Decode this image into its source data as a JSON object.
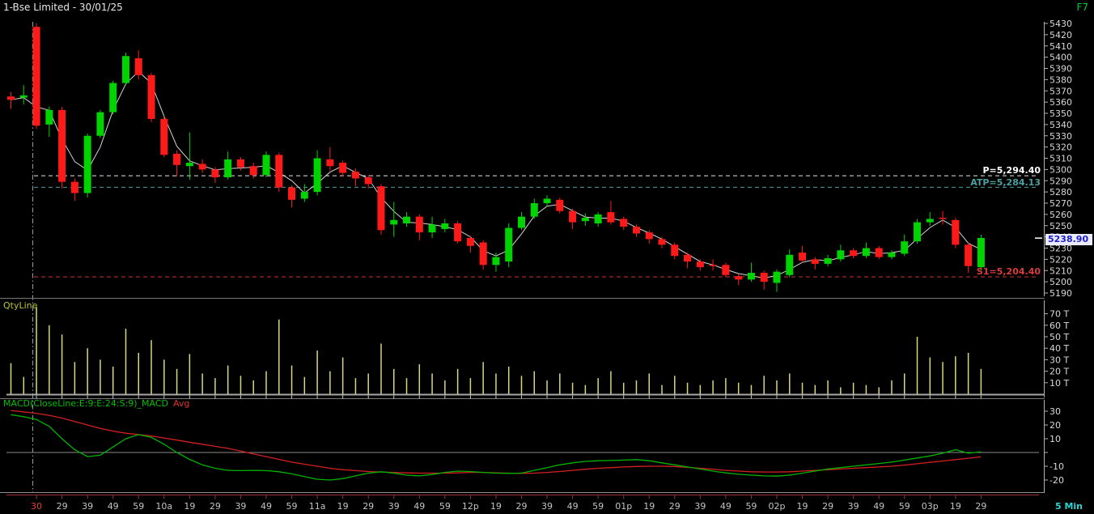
{
  "header": {
    "title": "1-Bse Limited - 30/01/25",
    "function_key": "F7"
  },
  "price_panel": {
    "y_axis_labels": [
      5430,
      5420,
      5410,
      5400,
      5390,
      5380,
      5370,
      5360,
      5350,
      5340,
      5330,
      5320,
      5310,
      5300,
      5290,
      5280,
      5270,
      5260,
      5250,
      5240,
      5230,
      5220,
      5210,
      5200,
      5190
    ],
    "levels": {
      "pivot": {
        "label": "P=5,294.40",
        "value": 5294.4,
        "color": "#ffffff"
      },
      "atp": {
        "label": "ATP=5,284.13",
        "value": 5284.13,
        "color": "#4da0a0"
      },
      "s1": {
        "label": "S1=5,204.40",
        "value": 5204.4,
        "color": "#d83c3c"
      }
    },
    "last_price": {
      "label": "5238.90",
      "value": 5238.9
    }
  },
  "volume_panel": {
    "title": "QtyLine",
    "y_axis": [
      {
        "v": 70,
        "t": "70 T"
      },
      {
        "v": 60,
        "t": "60 T"
      },
      {
        "v": 50,
        "t": "50 T"
      },
      {
        "v": 40,
        "t": "40 T"
      },
      {
        "v": 30,
        "t": "30 T"
      },
      {
        "v": 20,
        "t": "20 T"
      },
      {
        "v": 10,
        "t": "10 T"
      }
    ]
  },
  "macd_panel": {
    "title_main": "MACD(CloseLine:E:9:E:24:S:9)_MACD",
    "title_avg": "Avg",
    "y_axis": [
      {
        "v": 30,
        "t": "30"
      },
      {
        "v": 20,
        "t": "20"
      },
      {
        "v": 10,
        "t": "10"
      },
      {
        "v": 0,
        "t": ""
      },
      {
        "v": -10,
        "t": "-10"
      },
      {
        "v": -20,
        "t": "-20"
      }
    ]
  },
  "x_axis": {
    "labels": [
      "30",
      "29",
      "39",
      "49",
      "59",
      "10a",
      "19",
      "29",
      "39",
      "49",
      "59",
      "11a",
      "19",
      "29",
      "39",
      "49",
      "59",
      "12p",
      "19",
      "29",
      "39",
      "49",
      "59",
      "01p",
      "19",
      "29",
      "39",
      "49",
      "59",
      "02p",
      "19",
      "29",
      "39",
      "49",
      "59",
      "03p",
      "19",
      "29"
    ],
    "interval_label": "5 Min"
  },
  "chart_data": {
    "type": "candlestick+volume+macd",
    "title": "1-Bse Limited - 30/01/25",
    "interval": "5 Min",
    "price_axis_range": [
      5190,
      5430
    ],
    "volume_axis_range_T": [
      0,
      78
    ],
    "macd_axis_range": [
      -25,
      33
    ],
    "levels": {
      "pivot": 5294.4,
      "atp": 5284.13,
      "s1": 5204.4,
      "last": 5238.9
    },
    "colors": {
      "up": "#00d400",
      "down": "#ff1a1a",
      "close_line": "#e0e0e0",
      "volume": "#d6d97e",
      "macd": "#00b400",
      "macd_avg": "#d42020",
      "pivot": "#e8e8e8",
      "atp": "#4da0a0",
      "s1": "#cc3434",
      "axis": "#b0b0b0",
      "axis_text": "#d8d8d8",
      "time_text": "#c4c4c4",
      "first_time_label": "#e04028",
      "time_axis": "#a03030"
    },
    "candles_ohlc": [
      [
        5365,
        5369,
        5354,
        5362
      ],
      [
        5364,
        5375,
        5358,
        5366
      ],
      [
        5427,
        5430,
        5336,
        5339
      ],
      [
        5340,
        5356,
        5329,
        5353
      ],
      [
        5353,
        5356,
        5283,
        5289
      ],
      [
        5289,
        5292,
        5272,
        5279
      ],
      [
        5279,
        5332,
        5275,
        5330
      ],
      [
        5330,
        5353,
        5328,
        5351
      ],
      [
        5351,
        5379,
        5349,
        5377
      ],
      [
        5377,
        5404,
        5375,
        5401
      ],
      [
        5399,
        5406,
        5380,
        5384
      ],
      [
        5384,
        5386,
        5342,
        5345
      ],
      [
        5345,
        5347,
        5311,
        5313
      ],
      [
        5314,
        5317,
        5294,
        5304
      ],
      [
        5303,
        5333,
        5291,
        5306
      ],
      [
        5305,
        5309,
        5297,
        5300
      ],
      [
        5300,
        5302,
        5288,
        5293
      ],
      [
        5293,
        5316,
        5291,
        5309
      ],
      [
        5309,
        5311,
        5299,
        5302
      ],
      [
        5303,
        5306,
        5292,
        5295
      ],
      [
        5295,
        5316,
        5293,
        5313
      ],
      [
        5313,
        5315,
        5280,
        5284
      ],
      [
        5284,
        5286,
        5266,
        5273
      ],
      [
        5274,
        5287,
        5271,
        5280
      ],
      [
        5280,
        5317,
        5277,
        5310
      ],
      [
        5309,
        5320,
        5299,
        5303
      ],
      [
        5306,
        5308,
        5294,
        5297
      ],
      [
        5298,
        5301,
        5285,
        5292
      ],
      [
        5293,
        5295,
        5283,
        5287
      ],
      [
        5285,
        5287,
        5242,
        5246
      ],
      [
        5251,
        5271,
        5240,
        5255
      ],
      [
        5252,
        5262,
        5249,
        5258
      ],
      [
        5258,
        5260,
        5237,
        5244
      ],
      [
        5244,
        5258,
        5239,
        5251
      ],
      [
        5247,
        5256,
        5244,
        5252
      ],
      [
        5252,
        5254,
        5234,
        5236
      ],
      [
        5239,
        5241,
        5226,
        5232
      ],
      [
        5235,
        5237,
        5211,
        5215
      ],
      [
        5215,
        5226,
        5209,
        5222
      ],
      [
        5218,
        5252,
        5213,
        5248
      ],
      [
        5248,
        5262,
        5246,
        5258
      ],
      [
        5258,
        5274,
        5256,
        5270
      ],
      [
        5270,
        5277,
        5267,
        5274
      ],
      [
        5273,
        5275,
        5261,
        5263
      ],
      [
        5263,
        5265,
        5247,
        5253
      ],
      [
        5254,
        5261,
        5250,
        5257
      ],
      [
        5252,
        5262,
        5249,
        5260
      ],
      [
        5262,
        5272,
        5251,
        5253
      ],
      [
        5256,
        5258,
        5246,
        5249
      ],
      [
        5249,
        5251,
        5240,
        5243
      ],
      [
        5244,
        5246,
        5234,
        5238
      ],
      [
        5238,
        5240,
        5230,
        5233
      ],
      [
        5233,
        5235,
        5220,
        5223
      ],
      [
        5224,
        5226,
        5212,
        5218
      ],
      [
        5218,
        5220,
        5210,
        5213
      ],
      [
        5215,
        5220,
        5210,
        5214
      ],
      [
        5215,
        5217,
        5204,
        5206
      ],
      [
        5205,
        5207,
        5197,
        5202
      ],
      [
        5202,
        5217,
        5200,
        5208
      ],
      [
        5208,
        5210,
        5193,
        5200
      ],
      [
        5199,
        5211,
        5191,
        5209
      ],
      [
        5206,
        5229,
        5204,
        5224
      ],
      [
        5226,
        5232,
        5217,
        5219
      ],
      [
        5220,
        5222,
        5211,
        5216
      ],
      [
        5216,
        5224,
        5214,
        5221
      ],
      [
        5220,
        5233,
        5218,
        5228
      ],
      [
        5228,
        5230,
        5221,
        5223
      ],
      [
        5223,
        5235,
        5221,
        5230
      ],
      [
        5230,
        5232,
        5220,
        5222
      ],
      [
        5222,
        5228,
        5220,
        5226
      ],
      [
        5225,
        5242,
        5223,
        5236
      ],
      [
        5236,
        5256,
        5234,
        5253
      ],
      [
        5253,
        5262,
        5250,
        5256
      ],
      [
        5257,
        5263,
        5251,
        5256
      ],
      [
        5255,
        5257,
        5230,
        5233
      ],
      [
        5233,
        5235,
        5208,
        5214
      ],
      [
        5213,
        5242,
        5210,
        5239
      ]
    ],
    "volumes_T": [
      27,
      15,
      76,
      60,
      52,
      28,
      40,
      30,
      24,
      57,
      36,
      47,
      30,
      22,
      35,
      18,
      14,
      25,
      16,
      12,
      20,
      65,
      25,
      15,
      38,
      20,
      32,
      14,
      18,
      44,
      22,
      14,
      26,
      18,
      12,
      22,
      14,
      28,
      18,
      24,
      16,
      20,
      12,
      18,
      10,
      8,
      14,
      20,
      10,
      12,
      18,
      8,
      16,
      10,
      8,
      12,
      14,
      10,
      8,
      16,
      12,
      18,
      10,
      8,
      12,
      6,
      10,
      8,
      6,
      12,
      18,
      50,
      32,
      28,
      33,
      36,
      22
    ],
    "macd_line": [
      27.5,
      26,
      24,
      19,
      10,
      2,
      -3,
      -2,
      4,
      10,
      13,
      11,
      6,
      0,
      -5,
      -9,
      -11.5,
      -13,
      -13.2,
      -13,
      -13.2,
      -14,
      -15.5,
      -17.5,
      -19.5,
      -20,
      -19,
      -17,
      -15,
      -14,
      -15,
      -16.5,
      -17,
      -16,
      -14.5,
      -13.5,
      -13.8,
      -14.5,
      -15,
      -15.2,
      -15,
      -13,
      -11,
      -9,
      -7.5,
      -6.5,
      -6,
      -5.8,
      -5.5,
      -5.2,
      -6,
      -7.5,
      -9,
      -10.5,
      -12,
      -13.5,
      -14.8,
      -15.8,
      -16.5,
      -17,
      -17.2,
      -16.5,
      -15,
      -13.5,
      -12,
      -11,
      -10,
      -9,
      -8,
      -7,
      -5.5,
      -4,
      -2.5,
      -0.5,
      2,
      -0.5,
      0.5
    ],
    "macd_avg_line": [
      30.5,
      29.5,
      28.5,
      27,
      25,
      22.5,
      20,
      17.5,
      15.5,
      14,
      13,
      12,
      10.5,
      9,
      7.5,
      6,
      4.5,
      3,
      1,
      -1,
      -3,
      -5,
      -7,
      -8.5,
      -10,
      -11.5,
      -12.5,
      -13.2,
      -13.8,
      -14.2,
      -14.5,
      -14.8,
      -15,
      -15,
      -15,
      -14.8,
      -14.5,
      -14.5,
      -14.8,
      -15,
      -15.2,
      -15,
      -14.5,
      -13.8,
      -13,
      -12.2,
      -11.5,
      -11,
      -10.5,
      -10.2,
      -10,
      -10,
      -10.2,
      -10.8,
      -11.5,
      -12.2,
      -13,
      -13.5,
      -14,
      -14.2,
      -14.2,
      -14,
      -13.5,
      -13,
      -12.5,
      -12,
      -11.5,
      -11,
      -10.5,
      -10,
      -9.2,
      -8.2,
      -7.2,
      -6.2,
      -5.2,
      -4.2,
      -3.2
    ]
  }
}
